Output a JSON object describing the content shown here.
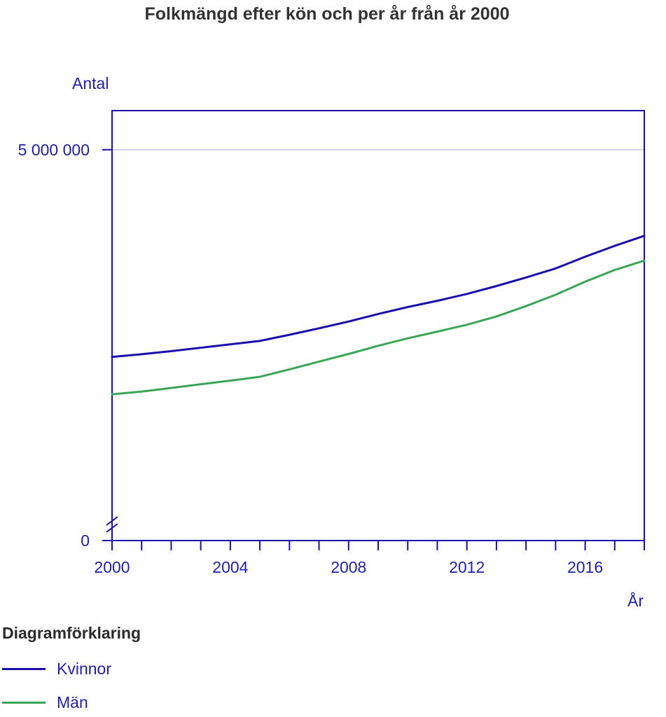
{
  "colors": {
    "axis": "#1a0dab",
    "text": "#1f1fa8",
    "grid": "#c8c8e8",
    "title": "#333333"
  },
  "legend": {
    "heading": "Diagramförklaring"
  },
  "chart_data": {
    "type": "line",
    "title": "Folkmängd efter kön och per år från år 2000",
    "ylabel": "Antal",
    "xlabel": "År",
    "x": [
      2000,
      2001,
      2002,
      2003,
      2004,
      2005,
      2006,
      2007,
      2008,
      2009,
      2010,
      2011,
      2012,
      2013,
      2014,
      2015,
      2016,
      2017,
      2018
    ],
    "xlim": [
      2000,
      2018
    ],
    "ylim": [
      0,
      5500000
    ],
    "y_break": true,
    "x_ticks": [
      2000,
      2004,
      2008,
      2012,
      2016
    ],
    "x_tick_labels": [
      "2000",
      "2004",
      "2008",
      "2012",
      "2016"
    ],
    "y_ticks": [
      0,
      5000000
    ],
    "y_tick_labels": [
      "0",
      "5 000 000"
    ],
    "grid": "horizontal at 5 000 000",
    "legend_position": "bottom-left",
    "series": [
      {
        "name": "Kvinnor",
        "color": "#1a0dab",
        "values": [
          2349000,
          2384000,
          2423000,
          2467000,
          2510000,
          2554000,
          2633000,
          2715000,
          2802000,
          2899000,
          2987000,
          3067000,
          3155000,
          3256000,
          3365000,
          3481000,
          3631000,
          3770000,
          3898000
        ]
      },
      {
        "name": "Män",
        "color": "#3aa655",
        "values": [
          1871000,
          1906000,
          1952000,
          1999000,
          2046000,
          2095000,
          2189000,
          2290000,
          2387000,
          2492000,
          2587000,
          2673000,
          2761000,
          2867000,
          2999000,
          3144000,
          3312000,
          3462000,
          3581000
        ]
      }
    ]
  }
}
